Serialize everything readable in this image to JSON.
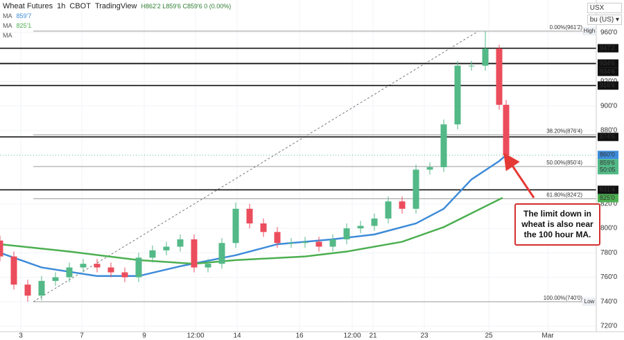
{
  "chart_data": {
    "type": "candlestick",
    "title": "Wheat Futures",
    "interval": "1h",
    "exchange": "CBOT",
    "source": "TradingView",
    "ohlc_text": "H862'2 L859'6 C859'6 0 (0.00%)",
    "currency": "USX",
    "unit": "bu (US) ▾",
    "up_color": "#53b987",
    "down_color": "#eb4d5c",
    "x": [
      0,
      4,
      8,
      12,
      16,
      20,
      24,
      28,
      32,
      36,
      40,
      44,
      48,
      52,
      56,
      60,
      64,
      68,
      72,
      76,
      80,
      84,
      88,
      92,
      96,
      100,
      104,
      108,
      112,
      116,
      120,
      124,
      128,
      132,
      136,
      140,
      144,
      146
    ],
    "open": [
      790,
      777,
      754,
      745,
      757,
      760,
      768,
      771,
      768,
      764,
      760,
      776,
      782,
      785,
      791,
      768,
      771,
      788,
      816,
      804,
      797,
      788,
      788,
      789,
      785,
      791,
      800,
      802,
      808,
      822,
      816,
      848,
      850,
      885,
      933,
      933,
      947,
      901
    ],
    "high": [
      794,
      781,
      758,
      761,
      764,
      772,
      775,
      775,
      772,
      768,
      780,
      786,
      789,
      795,
      795,
      775,
      792,
      821,
      820,
      808,
      801,
      792,
      793,
      793,
      795,
      804,
      806,
      812,
      826,
      826,
      852,
      854,
      889,
      937,
      937,
      961.25,
      950,
      905
    ],
    "low": [
      773,
      750,
      740,
      741,
      753,
      756,
      764,
      764,
      760,
      756,
      756,
      772,
      778,
      781,
      764,
      764,
      767,
      784,
      800,
      793,
      784,
      784,
      784,
      781,
      781,
      787,
      796,
      798,
      804,
      812,
      812,
      844,
      846,
      881,
      929,
      929,
      897,
      859.75
    ],
    "close": [
      777,
      754,
      745,
      757,
      760,
      768,
      771,
      768,
      764,
      760,
      776,
      782,
      785,
      791,
      768,
      771,
      788,
      816,
      804,
      797,
      788,
      788,
      789,
      785,
      791,
      800,
      802,
      808,
      822,
      816,
      848,
      850,
      885,
      933,
      933,
      947,
      901,
      859.75
    ],
    "last_price": {
      "value": 859.75,
      "label": "859'6"
    },
    "countdown": "50:05",
    "moving_averages": [
      {
        "name": "MA",
        "legend_value": "859'7",
        "color": "#3d8bd9",
        "axis_label": {
          "value": 860,
          "label": "860'0"
        },
        "x": [
          0,
          12,
          28,
          40,
          52,
          68,
          80,
          96,
          108,
          120,
          128,
          136,
          144,
          146
        ],
        "values": [
          780,
          768,
          761,
          761,
          769,
          778,
          787,
          791,
          795,
          804,
          816,
          840,
          855,
          860
        ]
      },
      {
        "name": "MA",
        "legend_value": "825'1",
        "color": "#4caf50",
        "axis_label": {
          "value": 825,
          "label": "825'0"
        },
        "x": [
          0,
          20,
          40,
          56,
          68,
          88,
          100,
          116,
          128,
          140,
          145
        ],
        "values": [
          787,
          781,
          774,
          771,
          774,
          777,
          781,
          789,
          801,
          818,
          825
        ]
      },
      {
        "name": "MA",
        "color": "#9e9e9e"
      }
    ],
    "levels": [
      {
        "value": 947.25,
        "label": "947'2"
      },
      {
        "value": 934.75,
        "label": "934'6"
      },
      {
        "value": 934.75,
        "label": "934'6"
      },
      {
        "value": 916.75,
        "label": "916'6"
      },
      {
        "value": 874.75,
        "label": "874'6"
      },
      {
        "value": 831.5,
        "label": "831'4"
      }
    ],
    "fib_x": [
      9.6,
      138
    ],
    "fib": [
      {
        "value": 961.25,
        "label": "0.00%(961'2)",
        "tag": "High"
      },
      {
        "value": 876.5,
        "label": "38.20%(876'4)"
      },
      {
        "value": 850.5,
        "label": "50.00%(850'4)"
      },
      {
        "value": 824.25,
        "label": "61.80%(824'2)"
      },
      {
        "value": 740,
        "label": "100.00%(740'0)",
        "tag": "Low"
      }
    ],
    "annotation": "The limit down in wheat is also near the 100 hour MA.",
    "xlim": [
      0,
      172
    ],
    "xticks": [
      {
        "value": 6,
        "label": "3"
      },
      {
        "value": 23.6,
        "label": "7"
      },
      {
        "value": 41.6,
        "label": "9"
      },
      {
        "value": 56.4,
        "label": "12:00"
      },
      {
        "value": 68.4,
        "label": "14"
      },
      {
        "value": 86.4,
        "label": "16"
      },
      {
        "value": 101.6,
        "label": "12:00"
      },
      {
        "value": 107.6,
        "label": "21"
      },
      {
        "value": 122.4,
        "label": "23"
      },
      {
        "value": 141,
        "label": "25"
      },
      {
        "value": 158,
        "label": "Mar"
      }
    ],
    "ylim": [
      715.5,
      986.7
    ],
    "yticks": [
      {
        "value": 960,
        "label": "960'0"
      },
      {
        "value": 920,
        "label": "920'0"
      },
      {
        "value": 900,
        "label": "900'0"
      },
      {
        "value": 880,
        "label": "880'0"
      },
      {
        "value": 820,
        "label": "820'0"
      },
      {
        "value": 800,
        "label": "800'0"
      },
      {
        "value": 780,
        "label": "780'0"
      },
      {
        "value": 760,
        "label": "760'0"
      },
      {
        "value": 740,
        "label": "740'0"
      },
      {
        "value": 720,
        "label": "720'0"
      }
    ],
    "grid": true
  }
}
